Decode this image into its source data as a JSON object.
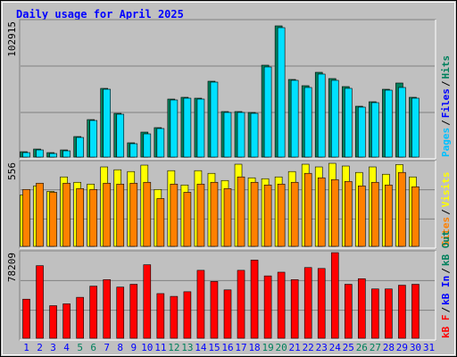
{
  "chart_data": [
    {
      "type": "bar",
      "title": "Daily usage for April 2025",
      "max_label": 102915,
      "ylim": [
        0,
        107800
      ],
      "legend": [
        {
          "name": "Pages",
          "color": "#00c0ff"
        },
        {
          "name": "Files",
          "color": "#0000ff"
        },
        {
          "name": "Hits",
          "color": "#00805c"
        }
      ],
      "legend_separator": "/",
      "series": [
        {
          "color": "#00805c",
          "values": [
            4200,
            6300,
            3500,
            5600,
            16100,
            29400,
            53900,
            34300,
            11200,
            19600,
            23100,
            45500,
            46900,
            46200,
            59500,
            35700,
            35700,
            35000,
            72100,
            102915,
            60900,
            56000,
            66500,
            61600,
            55300,
            39900,
            43400,
            53200,
            58100,
            46900,
            null
          ]
        },
        {
          "color": "#00e0ff",
          "values": [
            3500,
            5600,
            2800,
            4900,
            15400,
            28700,
            53200,
            33600,
            10500,
            18200,
            22400,
            44800,
            46200,
            45500,
            58800,
            35000,
            35000,
            34300,
            70700,
            101500,
            60200,
            54600,
            65100,
            60200,
            53900,
            39200,
            42700,
            52500,
            54600,
            46200,
            null
          ]
        }
      ]
    },
    {
      "type": "bar",
      "max_label": 556,
      "ylim": [
        0,
        574
      ],
      "legend": [
        {
          "name": "Sites",
          "color": "#ff8000"
        },
        {
          "name": "Visits",
          "color": "#ffff00"
        }
      ],
      "legend_separator": "/",
      "series": [
        {
          "color": "#ffff00",
          "values": [
            344,
            405,
            368,
            465,
            429,
            417,
            532,
            513,
            501,
            544,
            381,
            507,
            411,
            507,
            489,
            441,
            550,
            459,
            453,
            465,
            501,
            550,
            532,
            556,
            538,
            495,
            532,
            483,
            548,
            465,
            null
          ]
        },
        {
          "color": "#ff8000",
          "values": [
            381,
            423,
            362,
            423,
            387,
            381,
            423,
            417,
            423,
            429,
            320,
            417,
            362,
            417,
            429,
            387,
            465,
            429,
            411,
            417,
            429,
            489,
            459,
            447,
            435,
            405,
            429,
            411,
            495,
            399,
            null
          ]
        }
      ]
    },
    {
      "type": "bar",
      "max_label": 78209,
      "ylim": [
        0,
        79900
      ],
      "legend": [
        {
          "name": "kB F",
          "color": "#ff0000"
        },
        {
          "name": "kB In",
          "color": "#0000ff"
        },
        {
          "name": "kB Out",
          "color": "#00805c"
        }
      ],
      "legend_separator": "/",
      "series": [
        {
          "color": "#ff0000",
          "values": [
            35700,
            66300,
            29750,
            31450,
            37400,
            47600,
            53550,
            46750,
            49300,
            67150,
            40800,
            38250,
            42500,
            62050,
            51850,
            44200,
            62050,
            71400,
            56950,
            60350,
            53550,
            64600,
            63750,
            78209,
            49300,
            54400,
            45050,
            45050,
            48450,
            49300,
            null
          ]
        }
      ],
      "categories": [
        "1",
        "2",
        "3",
        "4",
        "5",
        "6",
        "7",
        "8",
        "9",
        "10",
        "11",
        "12",
        "13",
        "14",
        "15",
        "16",
        "17",
        "18",
        "19",
        "20",
        "21",
        "22",
        "23",
        "24",
        "25",
        "26",
        "27",
        "28",
        "29",
        "30",
        "31"
      ],
      "category_colors": [
        "#0000ff",
        "#0000ff",
        "#0000ff",
        "#0000ff",
        "#00805c",
        "#00805c",
        "#0000ff",
        "#0000ff",
        "#0000ff",
        "#0000ff",
        "#0000ff",
        "#00805c",
        "#00805c",
        "#0000ff",
        "#0000ff",
        "#0000ff",
        "#0000ff",
        "#0000ff",
        "#00805c",
        "#00805c",
        "#0000ff",
        "#0000ff",
        "#0000ff",
        "#0000ff",
        "#0000ff",
        "#00805c",
        "#00805c",
        "#0000ff",
        "#0000ff",
        "#0000ff",
        "#0000ff"
      ]
    }
  ]
}
